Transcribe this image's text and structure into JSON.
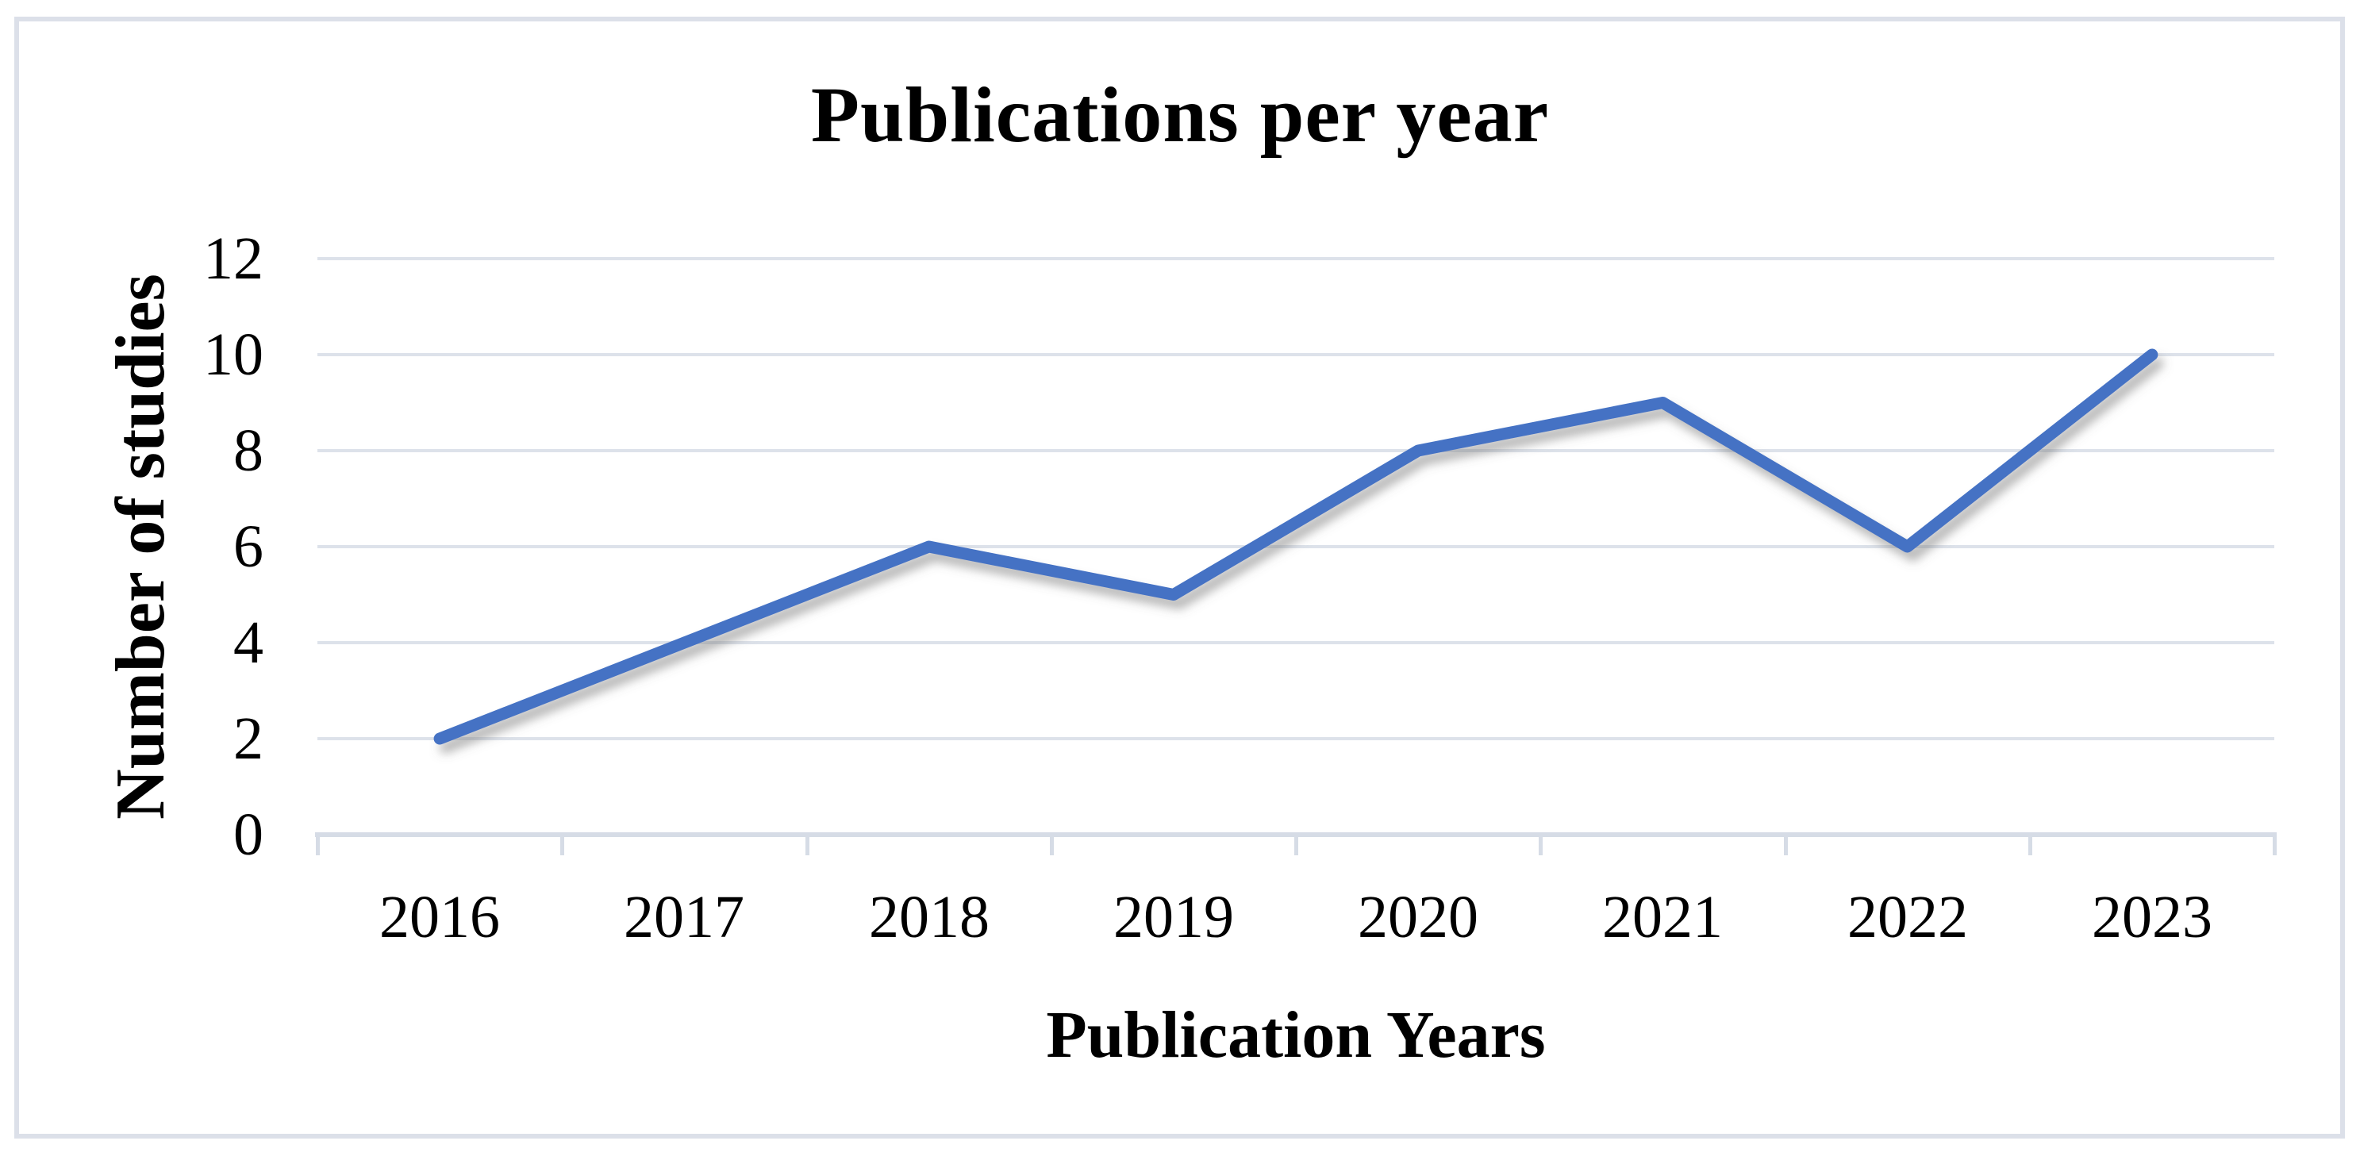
{
  "chart_data": {
    "type": "line",
    "title": "Publications per year",
    "xlabel": "Publication Years",
    "ylabel": "Number of studies",
    "categories": [
      "2016",
      "2017",
      "2018",
      "2019",
      "2020",
      "2021",
      "2022",
      "2023"
    ],
    "values": [
      2,
      4,
      6,
      5,
      8,
      9,
      6,
      10
    ],
    "y_ticks": [
      0,
      2,
      4,
      6,
      8,
      10,
      12
    ],
    "ylim": [
      0,
      12
    ],
    "grid": true,
    "legend": "none",
    "line_color": "#4472C4",
    "gridline_color": "#dde2ea",
    "axis_color": "#d6dce6",
    "text_color": "#000000",
    "border_color": "#dce0e9",
    "background": "#ffffff"
  }
}
